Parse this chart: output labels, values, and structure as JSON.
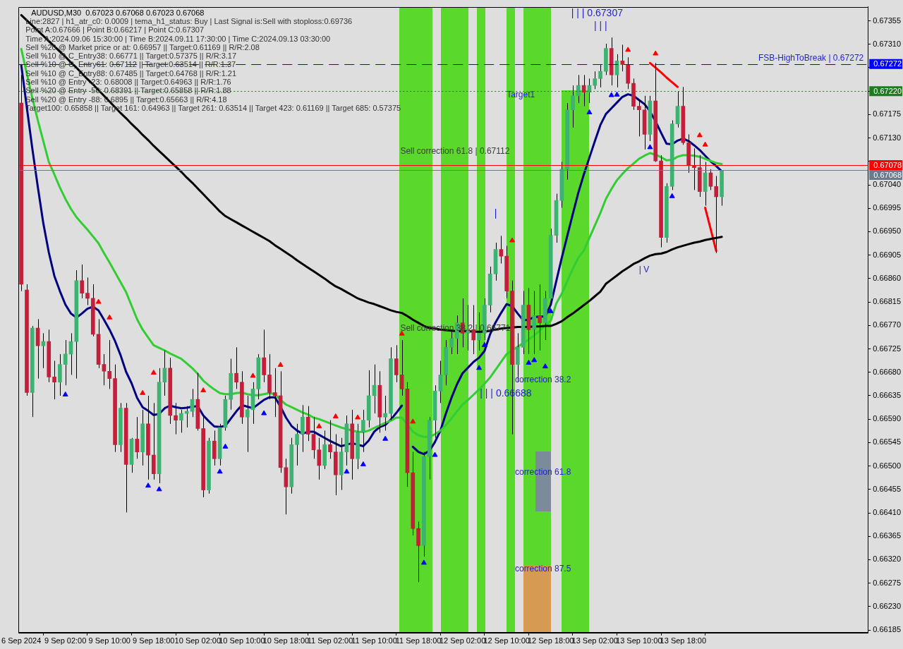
{
  "chart_data": {
    "type": "candlestick",
    "title": "AUDUSD,M30  0.67023 0.67068 0.67023 0.67068",
    "categories": [
      "6 Sep 2024",
      null,
      null,
      null,
      null,
      null,
      null,
      null,
      "9 Sep 02:00",
      null,
      null,
      null,
      null,
      null,
      null,
      null,
      "9 Sep 10:00",
      null,
      null,
      null,
      null,
      null,
      null,
      null,
      "9 Sep 18:00",
      null,
      null,
      null,
      null,
      null,
      null,
      null,
      "10 Sep 02:00",
      null,
      null,
      null,
      null,
      null,
      null,
      null,
      "10 Sep 10:00",
      null,
      null,
      null,
      null,
      null,
      null,
      null,
      "10 Sep 18:00",
      null,
      null,
      null,
      null,
      null,
      null,
      null,
      "11 Sep 02:00",
      null,
      null,
      null,
      null,
      null,
      null,
      null,
      "11 Sep 10:00",
      null,
      null,
      null,
      null,
      null,
      null,
      null,
      "11 Sep 18:00",
      null,
      null,
      null,
      null,
      null,
      null,
      null,
      "12 Sep 02:00",
      null,
      null,
      null,
      null,
      null,
      null,
      null,
      "12 Sep 10:00",
      null,
      null,
      null,
      null,
      null,
      null,
      null,
      "12 Sep 18:00",
      null,
      null,
      null,
      null,
      null,
      null,
      null,
      "13 Sep 02:00",
      null,
      null,
      null,
      null,
      null,
      null,
      null,
      "13 Sep 10:00",
      null,
      null,
      null,
      null,
      null,
      null,
      null,
      "13 Sep 18:00",
      null,
      null,
      null,
      null,
      null,
      null,
      null,
      null,
      null,
      null,
      null,
      null,
      null,
      null,
      null,
      null,
      null,
      null,
      null,
      null,
      null,
      null,
      null,
      null,
      null,
      null,
      null,
      null,
      null,
      null,
      null,
      null,
      null
    ],
    "ylim": [
      0.6618,
      0.67382
    ],
    "yticks": [
      0.67355,
      {
        "value": 0.6731,
        "label": "0.67310"
      },
      {
        "value": 0.67265,
        "label": null
      },
      {
        "value": 0.6722,
        "label": null
      },
      0.67175,
      {
        "value": 0.6713,
        "label": "0.67130"
      },
      {
        "value": 0.67085,
        "label": null
      },
      {
        "value": 0.6704,
        "label": "0.67040"
      },
      0.66995,
      {
        "value": 0.6695,
        "label": "0.66950"
      },
      0.66905,
      {
        "value": 0.6686,
        "label": "0.66860"
      },
      0.66815,
      {
        "value": 0.6677,
        "label": "0.66770"
      },
      0.66725,
      {
        "value": 0.6668,
        "label": "0.66680"
      },
      0.66635,
      {
        "value": 0.6659,
        "label": "0.66590"
      },
      0.66545,
      {
        "value": 0.665,
        "label": "0.66500"
      },
      0.66455,
      {
        "value": 0.6641,
        "label": "0.66410"
      },
      0.66365,
      {
        "value": 0.6632,
        "label": "0.66320"
      },
      0.66275,
      {
        "value": 0.6623,
        "label": "0.66230"
      },
      0.66185
    ],
    "ohlc": [
      [
        0.67197,
        0.67251,
        0.66836,
        0.66849
      ],
      [
        0.66838,
        0.66849,
        0.66635,
        0.66641
      ],
      [
        0.66641,
        0.66769,
        0.66594,
        0.66765
      ],
      [
        0.66765,
        0.66782,
        0.66668,
        0.66731
      ],
      [
        0.66731,
        0.66755,
        0.66688,
        0.66739
      ],
      [
        0.66739,
        0.66762,
        0.66661,
        0.66671
      ],
      [
        0.66671,
        0.66702,
        0.66628,
        0.66661
      ],
      [
        0.66661,
        0.66715,
        0.66635,
        0.66695
      ],
      [
        0.66695,
        0.66742,
        0.66655,
        0.66715
      ],
      [
        0.66715,
        0.66755,
        0.66675,
        0.66739
      ],
      [
        0.66739,
        0.66876,
        0.66668,
        0.66856
      ],
      [
        0.66856,
        0.66887,
        0.66822,
        0.66832
      ],
      [
        0.66832,
        0.66862,
        0.66809,
        0.66822
      ],
      [
        0.66822,
        0.66849,
        0.66749,
        0.66753
      ],
      [
        0.66753,
        0.66782,
        0.66688,
        0.66695
      ],
      [
        0.66695,
        0.66715,
        0.66655,
        0.66682
      ],
      [
        0.66682,
        0.66742,
        0.66648,
        0.66668
      ],
      [
        0.66668,
        0.66695,
        0.66527,
        0.66541
      ],
      [
        0.66541,
        0.66621,
        0.66527,
        0.66611
      ],
      [
        0.66611,
        0.66621,
        0.66411,
        0.66503
      ],
      [
        0.66503,
        0.66554,
        0.66487,
        0.66552
      ],
      [
        0.66552,
        0.66594,
        0.66514,
        0.66527
      ],
      [
        0.66527,
        0.66608,
        0.66501,
        0.66581
      ],
      [
        0.66581,
        0.66635,
        0.66474,
        0.66521
      ],
      [
        0.66521,
        0.66621,
        0.66474,
        0.66485
      ],
      [
        0.66485,
        0.66688,
        0.66467,
        0.66661
      ],
      [
        0.66661,
        0.66722,
        0.66635,
        0.66688
      ],
      [
        0.66688,
        0.66708,
        0.66581,
        0.66597
      ],
      [
        0.66597,
        0.66621,
        0.66561,
        0.66588
      ],
      [
        0.66588,
        0.66608,
        0.66564,
        0.66601
      ],
      [
        0.66601,
        0.66615,
        0.66574,
        0.66605
      ],
      [
        0.66605,
        0.66648,
        0.66594,
        0.66628
      ],
      [
        0.66628,
        0.66679,
        0.66568,
        0.66572
      ],
      [
        0.66572,
        0.66594,
        0.6644,
        0.66454
      ],
      [
        0.66454,
        0.66554,
        0.66447,
        0.66548
      ],
      [
        0.66548,
        0.66568,
        0.66501,
        0.66514
      ],
      [
        0.66514,
        0.66581,
        0.66501,
        0.66574
      ],
      [
        0.66574,
        0.66635,
        0.66568,
        0.66628
      ],
      [
        0.66628,
        0.66706,
        0.66608,
        0.66678
      ],
      [
        0.66678,
        0.66728,
        0.66648,
        0.66661
      ],
      [
        0.66661,
        0.66682,
        0.66581,
        0.66594
      ],
      [
        0.66594,
        0.66635,
        0.66527,
        0.66608
      ],
      [
        0.66608,
        0.66661,
        0.66581,
        0.66648
      ],
      [
        0.66648,
        0.66715,
        0.66628,
        0.66708
      ],
      [
        0.66708,
        0.66762,
        0.66661,
        0.66675
      ],
      [
        0.66675,
        0.66715,
        0.66628,
        0.66641
      ],
      [
        0.66641,
        0.66688,
        0.66594,
        0.66635
      ],
      [
        0.66635,
        0.66682,
        0.66487,
        0.66497
      ],
      [
        0.66497,
        0.66514,
        0.66407,
        0.6646
      ],
      [
        0.6646,
        0.66554,
        0.66447,
        0.66541
      ],
      [
        0.66541,
        0.66581,
        0.66501,
        0.66561
      ],
      [
        0.66561,
        0.66617,
        0.66527,
        0.66594
      ],
      [
        0.66594,
        0.66615,
        0.66548,
        0.66561
      ],
      [
        0.66561,
        0.66594,
        0.66514,
        0.66531
      ],
      [
        0.66531,
        0.66554,
        0.66474,
        0.66501
      ],
      [
        0.66501,
        0.66568,
        0.66494,
        0.66541
      ],
      [
        0.66541,
        0.66588,
        0.66514,
        0.66527
      ],
      [
        0.66527,
        0.66561,
        0.66444,
        0.66483
      ],
      [
        0.66483,
        0.66554,
        0.66454,
        0.66527
      ],
      [
        0.66527,
        0.66597,
        0.66501,
        0.66581
      ],
      [
        0.66581,
        0.66608,
        0.66474,
        0.66514
      ],
      [
        0.66514,
        0.66581,
        0.66494,
        0.66565
      ],
      [
        0.66565,
        0.66608,
        0.66527,
        0.66588
      ],
      [
        0.66588,
        0.66684,
        0.66574,
        0.66635
      ],
      [
        0.66635,
        0.66695,
        0.66601,
        0.66655
      ],
      [
        0.66655,
        0.66682,
        0.66564,
        0.66594
      ],
      [
        0.66594,
        0.66635,
        0.66568,
        0.66601
      ],
      [
        0.66601,
        0.66728,
        0.66588,
        0.66706
      ],
      [
        0.66706,
        0.66732,
        0.66661,
        0.66675
      ],
      [
        0.66675,
        0.66742,
        0.66635,
        0.66648
      ],
      [
        0.66648,
        0.66661,
        0.6646,
        0.66487
      ],
      [
        0.66487,
        0.66527,
        0.66367,
        0.6638
      ],
      [
        0.6638,
        0.66393,
        0.66277,
        0.66347
      ],
      [
        0.66347,
        0.66527,
        0.66326,
        0.66518
      ],
      [
        0.66518,
        0.66594,
        0.66474,
        0.66588
      ],
      [
        0.66588,
        0.66655,
        0.66554,
        0.66644
      ],
      [
        0.66644,
        0.66702,
        0.66621,
        0.66675
      ],
      [
        0.66675,
        0.66742,
        0.66655,
        0.66728
      ],
      [
        0.66728,
        0.66762,
        0.66715,
        0.66745
      ],
      [
        0.66745,
        0.66789,
        0.66715,
        0.66775
      ],
      [
        0.66775,
        0.66822,
        0.66728,
        0.66755
      ],
      [
        0.66755,
        0.66809,
        0.66722,
        0.66762
      ],
      [
        0.66762,
        0.66809,
        0.66715,
        0.66742
      ],
      [
        0.66742,
        0.66795,
        0.66722,
        0.66755
      ],
      [
        0.66755,
        0.66822,
        0.66742,
        0.66809
      ],
      [
        0.66809,
        0.66883,
        0.66795,
        0.66869
      ],
      [
        0.66869,
        0.66929,
        0.66856,
        0.66916
      ],
      [
        0.66916,
        0.66942,
        0.66889,
        0.66903
      ],
      [
        0.66903,
        0.66923,
        0.66822,
        0.66836
      ],
      [
        0.66836,
        0.66856,
        0.66561,
        0.66695
      ],
      [
        0.66695,
        0.66755,
        0.66661,
        0.66728
      ],
      [
        0.66728,
        0.66836,
        0.66715,
        0.66809
      ],
      [
        0.66809,
        0.66842,
        0.66715,
        0.66762
      ],
      [
        0.66762,
        0.66836,
        0.66715,
        0.66789
      ],
      [
        0.66789,
        0.66849,
        0.66722,
        0.66775
      ],
      [
        0.66775,
        0.66836,
        0.66742,
        0.66822
      ],
      [
        0.66822,
        0.66956,
        0.66809,
        0.66943
      ],
      [
        0.66943,
        0.67023,
        0.66929,
        0.6701
      ],
      [
        0.6701,
        0.67084,
        0.66996,
        0.6707
      ],
      [
        0.6707,
        0.67197,
        0.6705,
        0.67184
      ],
      [
        0.67184,
        0.67231,
        0.6715,
        0.67211
      ],
      [
        0.67211,
        0.67251,
        0.67197,
        0.67231
      ],
      [
        0.67231,
        0.67251,
        0.67191,
        0.67218
      ],
      [
        0.67218,
        0.67244,
        0.67197,
        0.67231
      ],
      [
        0.67231,
        0.67258,
        0.67224,
        0.67244
      ],
      [
        0.67244,
        0.67271,
        0.67227,
        0.67258
      ],
      [
        0.67258,
        0.67311,
        0.67251,
        0.67302
      ],
      [
        0.67302,
        0.67323,
        0.67231,
        0.67251
      ],
      [
        0.67251,
        0.67291,
        0.67227,
        0.67278
      ],
      [
        0.67278,
        0.67309,
        0.67258,
        0.67271
      ],
      [
        0.67271,
        0.67285,
        0.67224,
        0.67235
      ],
      [
        0.67235,
        0.67244,
        0.67184,
        0.67191
      ],
      [
        0.67191,
        0.67204,
        0.67133,
        0.67184
      ],
      [
        0.67184,
        0.67211,
        0.67108,
        0.67137
      ],
      [
        0.67137,
        0.67211,
        0.67124,
        0.67201
      ],
      [
        0.67201,
        0.67274,
        0.67084,
        0.67086
      ],
      [
        0.67086,
        0.67097,
        0.6692,
        0.66939
      ],
      [
        0.66939,
        0.67043,
        0.66929,
        0.67037
      ],
      [
        0.67037,
        0.67164,
        0.6703,
        0.67157
      ],
      [
        0.67157,
        0.6722,
        0.6715,
        0.67191
      ],
      [
        0.67191,
        0.67228,
        0.67117,
        0.67121
      ],
      [
        0.67121,
        0.67137,
        0.67063,
        0.67077
      ],
      [
        0.67077,
        0.6711,
        0.6703,
        0.67073
      ],
      [
        0.67073,
        0.67097,
        0.67017,
        0.67027
      ],
      [
        0.67027,
        0.67084,
        0.67,
        0.67063
      ],
      [
        0.67063,
        0.6707,
        0.6703,
        0.67037
      ],
      [
        0.67037,
        0.67057,
        0.66909,
        0.67017
      ],
      [
        0.67017,
        0.67068,
        0.67,
        0.67068
      ],
      null,
      null,
      null,
      null,
      null,
      null,
      null,
      null,
      null,
      null,
      null,
      null,
      null,
      null,
      null,
      null,
      null,
      null,
      null,
      null,
      null,
      null,
      null,
      null,
      null,
      null
    ],
    "colors": [
      "#c41e3a",
      "#c41e3a",
      "#3cb371",
      "#c41e3a",
      "#3cb371",
      "#c41e3a",
      "#c41e3a",
      "#3cb371",
      "#3cb371",
      "#3cb371",
      "#3cb371",
      "#c41e3a",
      "#c41e3a",
      "#c41e3a",
      "#c41e3a",
      "#c41e3a",
      "#c41e3a",
      "#c41e3a",
      "#3cb371",
      "#c41e3a",
      "#3cb371",
      "#c41e3a",
      "#3cb371",
      "#c41e3a",
      "#c41e3a",
      "#3cb371",
      "#3cb371",
      "#c41e3a",
      "#c41e3a",
      "#3cb371",
      "#3cb371",
      "#3cb371",
      "#c41e3a",
      "#c41e3a",
      "#3cb371",
      "#c41e3a",
      "#3cb371",
      "#3cb371",
      "#3cb371",
      "#c41e3a",
      "#c41e3a",
      "#3cb371",
      "#3cb371",
      "#3cb371",
      "#c41e3a",
      "#c41e3a",
      "#c41e3a",
      "#c41e3a",
      "#c41e3a",
      "#3cb371",
      "#3cb371",
      "#3cb371",
      "#c41e3a",
      "#c41e3a",
      "#c41e3a",
      "#3cb371",
      "#c41e3a",
      "#c41e3a",
      "#3cb371",
      "#3cb371",
      "#c41e3a",
      "#3cb371",
      "#3cb371",
      "#3cb371",
      "#3cb371",
      "#c41e3a",
      "#3cb371",
      "#3cb371",
      "#c41e3a",
      "#c41e3a",
      "#c41e3a",
      "#c41e3a",
      "#c41e3a",
      "#3cb371",
      "#3cb371",
      "#3cb371",
      "#3cb371",
      "#3cb371",
      "#3cb371",
      "#3cb371",
      "#c41e3a",
      "#3cb371",
      "#c41e3a",
      "#3cb371",
      "#3cb371",
      "#3cb371",
      "#3cb371",
      "#c41e3a",
      "#c41e3a",
      "#c41e3a",
      "#3cb371",
      "#3cb371",
      "#c41e3a",
      "#3cb371",
      "#c41e3a",
      "#3cb371",
      "#3cb371",
      "#3cb371",
      "#3cb371",
      "#3cb371",
      "#3cb371",
      "#3cb371",
      "#c41e3a",
      "#3cb371",
      "#3cb371",
      "#3cb371",
      "#3cb371",
      "#c41e3a",
      "#3cb371",
      "#c41e3a",
      "#c41e3a",
      "#c41e3a",
      "#c41e3a",
      "#c41e3a",
      "#3cb371",
      "#c41e3a",
      "#c41e3a",
      "#3cb371",
      "#3cb371",
      "#3cb371",
      "#c41e3a",
      "#c41e3a",
      "#c41e3a",
      "#c41e3a",
      "#3cb371",
      "#c41e3a",
      "#c41e3a",
      "#3cb371",
      null,
      null,
      null,
      null,
      null,
      null,
      null,
      null,
      null,
      null,
      null,
      null,
      null,
      null,
      null,
      null,
      null,
      null,
      null,
      null,
      null,
      null,
      null,
      null,
      null,
      null
    ],
    "series": [
      {
        "type": "line",
        "color": "#000000",
        "values": [
          0.67366,
          0.67356,
          0.67346,
          0.67336,
          0.67326,
          0.67316,
          0.67306,
          0.67296,
          0.67286,
          0.67275,
          0.67265,
          0.67254,
          0.67243,
          0.67233,
          0.67222,
          0.67211,
          0.672,
          0.67189,
          0.67178,
          0.67168,
          0.67157,
          0.67147,
          0.67136,
          0.67126,
          0.67115,
          0.67105,
          0.67095,
          0.67085,
          0.67075,
          0.67065,
          0.67054,
          0.67044,
          0.67033,
          0.67022,
          0.67011,
          0.67,
          0.66989,
          0.6698,
          0.66974,
          0.66968,
          0.66962,
          0.66956,
          0.6695,
          0.66944,
          0.66938,
          0.66932,
          0.66924,
          0.66917,
          0.6691,
          0.66903,
          0.66895,
          0.66888,
          0.66881,
          0.66874,
          0.66867,
          0.6686,
          0.66852,
          0.66845,
          0.6684,
          0.66834,
          0.66828,
          0.66822,
          0.66818,
          0.66814,
          0.66811,
          0.66807,
          0.66803,
          0.66799,
          0.66796,
          0.66794,
          0.66788,
          0.66781,
          0.66775,
          0.66769,
          0.66765,
          0.66764,
          0.66762,
          0.66761,
          0.6676,
          0.66759,
          0.66759,
          0.66759,
          0.66758,
          0.66758,
          0.66758,
          0.6676,
          0.66762,
          0.66764,
          0.66765,
          0.66766,
          0.66767,
          0.66767,
          0.66767,
          0.66768,
          0.66768,
          0.66769,
          0.66769,
          0.66773,
          0.66778,
          0.66786,
          0.66793,
          0.66801,
          0.66809,
          0.66817,
          0.66826,
          0.66835,
          0.6685,
          0.66858,
          0.66866,
          0.66874,
          0.66881,
          0.66888,
          0.66893,
          0.66899,
          0.66904,
          0.66907,
          0.66908,
          0.66911,
          0.66916,
          0.6692,
          0.66923,
          0.66926,
          0.66929,
          0.66931,
          0.66934,
          0.66936,
          0.66938,
          0.6694,
          null,
          null,
          null,
          null,
          null,
          null,
          null,
          null,
          null,
          null,
          null,
          null,
          null,
          null,
          null,
          null,
          null,
          null,
          null,
          null,
          null,
          null,
          null,
          null,
          null,
          null
        ]
      },
      {
        "type": "line",
        "color": "#32cd32",
        "values": [
          0.67301,
          0.67254,
          0.67207,
          0.67164,
          0.67124,
          0.67084,
          0.6706,
          0.67035,
          0.67013,
          0.66994,
          0.66978,
          0.66966,
          0.66954,
          0.66941,
          0.66928,
          0.66909,
          0.66891,
          0.66872,
          0.66853,
          0.66834,
          0.66808,
          0.66782,
          0.66762,
          0.66747,
          0.66732,
          0.66727,
          0.66722,
          0.66716,
          0.66711,
          0.66706,
          0.66697,
          0.66688,
          0.66677,
          0.66664,
          0.66655,
          0.66647,
          0.6664,
          0.66638,
          0.66638,
          0.6664,
          0.66641,
          0.66638,
          0.66636,
          0.66636,
          0.66638,
          0.6664,
          0.66638,
          0.66627,
          0.66618,
          0.66613,
          0.66608,
          0.66603,
          0.66599,
          0.66593,
          0.6659,
          0.66586,
          0.66582,
          0.66578,
          0.66574,
          0.66571,
          0.66568,
          0.66566,
          0.66565,
          0.66568,
          0.66573,
          0.66578,
          0.66583,
          0.66587,
          0.66593,
          0.66593,
          0.6658,
          0.66566,
          0.66559,
          0.66556,
          0.66556,
          0.66561,
          0.66568,
          0.66579,
          0.66591,
          0.66605,
          0.66618,
          0.66627,
          0.66637,
          0.66647,
          0.66658,
          0.6667,
          0.66685,
          0.667,
          0.66715,
          0.66722,
          0.66729,
          0.66736,
          0.66743,
          0.66751,
          0.6676,
          0.6677,
          0.66779,
          0.66812,
          0.66831,
          0.66855,
          0.66879,
          0.669,
          0.66914,
          0.66938,
          0.66962,
          0.66986,
          0.67013,
          0.67032,
          0.67049,
          0.67061,
          0.67072,
          0.67081,
          0.6709,
          0.67096,
          0.67101,
          0.67098,
          0.67093,
          0.67087,
          0.67088,
          0.67094,
          0.67097,
          0.67097,
          0.67096,
          0.67094,
          0.6709,
          0.67086,
          0.67082,
          0.6708,
          null,
          null,
          null,
          null,
          null,
          null,
          null,
          null,
          null,
          null,
          null,
          null,
          null,
          null,
          null,
          null,
          null,
          null,
          null,
          null,
          null,
          null,
          null,
          null,
          null,
          null
        ]
      },
      {
        "type": "line",
        "color": "#000080",
        "values": [
          0.6727,
          0.67189,
          0.6711,
          0.67036,
          0.66966,
          0.6691,
          0.66865,
          0.66836,
          0.6681,
          0.66793,
          0.66785,
          0.66793,
          0.66802,
          0.66806,
          0.66799,
          0.66781,
          0.66762,
          0.6674,
          0.66713,
          0.66681,
          0.66659,
          0.66631,
          0.66613,
          0.66606,
          0.66598,
          0.666,
          0.66611,
          0.66616,
          0.66613,
          0.66611,
          0.66612,
          0.66614,
          0.66615,
          0.66597,
          0.66586,
          0.66576,
          0.66575,
          0.66577,
          0.66591,
          0.66605,
          0.66617,
          0.66614,
          0.66611,
          0.66619,
          0.66627,
          0.66632,
          0.66632,
          0.66614,
          0.66593,
          0.66577,
          0.66568,
          0.66562,
          0.66566,
          0.66566,
          0.6656,
          0.66554,
          0.66548,
          0.66543,
          0.66538,
          0.66541,
          0.66544,
          0.66541,
          0.66538,
          0.66549,
          0.66566,
          0.66575,
          0.66579,
          0.66589,
          0.66602,
          0.66616,
          null,
          0.66537,
          0.66527,
          0.66523,
          0.66529,
          0.66546,
          0.66568,
          0.66601,
          0.66631,
          0.66657,
          0.66678,
          0.66689,
          0.667,
          0.66708,
          0.66721,
          0.66753,
          0.66776,
          0.66794,
          0.66811,
          0.66807,
          0.66793,
          0.6678,
          0.66781,
          0.66786,
          0.66787,
          0.66787,
          0.6681,
          0.66855,
          0.669,
          0.66942,
          0.66984,
          0.67025,
          0.6706,
          0.67092,
          0.67124,
          0.67155,
          0.67176,
          0.67187,
          0.67198,
          0.67209,
          0.67214,
          0.67211,
          0.67203,
          0.67195,
          0.67181,
          0.67162,
          0.6714,
          0.67119,
          0.67118,
          0.67125,
          0.67129,
          0.67124,
          0.67116,
          0.67107,
          0.67096,
          0.67085,
          0.67076,
          0.67066,
          null,
          null,
          null,
          null,
          null,
          null,
          null,
          null,
          null,
          null,
          null,
          null,
          null,
          null,
          null,
          null,
          null,
          null,
          null,
          null,
          null,
          null,
          null,
          null,
          null,
          null
        ]
      },
      {
        "type": "line",
        "color": "#ff0000",
        "values": [
          null,
          null,
          null,
          null,
          null,
          null,
          null,
          null,
          null,
          null,
          null,
          null,
          null,
          null,
          null,
          null,
          null,
          null,
          null,
          null,
          null,
          null,
          null,
          null,
          null,
          null,
          null,
          null,
          null,
          null,
          null,
          null,
          null,
          null,
          null,
          null,
          null,
          null,
          null,
          null,
          null,
          null,
          null,
          null,
          null,
          null,
          null,
          null,
          null,
          null,
          null,
          null,
          null,
          null,
          null,
          null,
          null,
          null,
          null,
          null,
          null,
          null,
          null,
          null,
          null,
          null,
          null,
          null,
          null,
          null,
          null,
          null,
          null,
          null,
          null,
          null,
          null,
          null,
          null,
          null,
          null,
          null,
          null,
          null,
          null,
          null,
          null,
          null,
          null,
          null,
          null,
          null,
          null,
          null,
          null,
          null,
          null,
          null,
          null,
          null,
          null,
          null,
          null,
          null,
          null,
          null,
          null,
          null,
          null,
          null,
          null,
          null,
          null,
          null,
          0.67274,
          0.67265,
          0.67256,
          0.67246,
          0.67237,
          0.67228,
          null,
          null,
          null,
          null,
          0.66996,
          0.66955,
          0.66913,
          null,
          null,
          null,
          null,
          null,
          null,
          null,
          null,
          null,
          null,
          null,
          null,
          null,
          null,
          null,
          null,
          null,
          null,
          null,
          null,
          null,
          null,
          null,
          null,
          null,
          null,
          null
        ]
      },
      {
        "type": "scatter",
        "color": "#0000ff",
        "marker": "triangle",
        "values": [
          null,
          null,
          null,
          null,
          null,
          null,
          null,
          null,
          0.66637,
          null,
          null,
          null,
          null,
          null,
          null,
          null,
          null,
          null,
          null,
          null,
          null,
          null,
          null,
          0.66462,
          null,
          0.66455,
          null,
          null,
          null,
          null,
          null,
          null,
          null,
          null,
          null,
          null,
          0.66489,
          0.66537,
          null,
          null,
          null,
          null,
          null,
          null,
          0.66601,
          null,
          null,
          null,
          null,
          null,
          null,
          null,
          null,
          null,
          null,
          null,
          null,
          null,
          null,
          0.66489,
          null,
          null,
          0.66503,
          null,
          null,
          null,
          0.66552,
          null,
          null,
          null,
          null,
          null,
          null,
          0.66314,
          null,
          0.66521,
          null,
          null,
          null,
          null,
          null,
          null,
          null,
          0.66688,
          0.66732,
          null,
          null,
          null,
          null,
          null,
          null,
          null,
          0.66698,
          0.66703,
          null,
          0.66691,
          0.66797,
          null,
          null,
          null,
          null,
          null,
          null,
          0.67179,
          null,
          null,
          null,
          0.67212,
          0.67213,
          null,
          null,
          null,
          null,
          null,
          0.67112,
          null,
          null,
          null,
          0.67018,
          null,
          null,
          null,
          null,
          null,
          null,
          null,
          null,
          null,
          null,
          null,
          null,
          null,
          null,
          null,
          null,
          null,
          null,
          null,
          null,
          null,
          null,
          null,
          null,
          null,
          null,
          null,
          null,
          null,
          null,
          null,
          null,
          null,
          null,
          null
        ]
      },
      {
        "type": "scatter",
        "color": "#ff0000",
        "marker": "triangle",
        "values": [
          null,
          null,
          null,
          null,
          null,
          null,
          null,
          null,
          null,
          null,
          null,
          null,
          null,
          null,
          0.66815,
          null,
          0.66785,
          null,
          null,
          null,
          null,
          null,
          0.6664,
          null,
          0.66679,
          null,
          null,
          null,
          null,
          null,
          null,
          null,
          null,
          0.66645,
          null,
          null,
          null,
          null,
          null,
          null,
          null,
          null,
          0.66673,
          null,
          null,
          null,
          null,
          0.66694,
          null,
          null,
          null,
          null,
          null,
          null,
          0.66576,
          null,
          null,
          0.66595,
          null,
          null,
          null,
          0.66593,
          null,
          null,
          null,
          null,
          null,
          null,
          null,
          0.66754,
          null,
          0.66585,
          null,
          null,
          null,
          null,
          null,
          null,
          null,
          null,
          null,
          null,
          null,
          null,
          null,
          null,
          null,
          null,
          null,
          0.66933,
          null,
          null,
          null,
          null,
          null,
          null,
          null,
          null,
          null,
          null,
          null,
          null,
          null,
          null,
          null,
          null,
          null,
          null,
          null,
          null,
          0.67299,
          null,
          null,
          null,
          null,
          0.67292,
          null,
          null,
          null,
          null,
          null,
          null,
          null,
          0.67135,
          0.67117,
          null,
          null,
          null,
          null,
          null,
          null,
          null,
          null,
          null,
          null,
          null,
          null,
          null,
          null,
          null,
          null,
          null,
          null,
          null,
          null,
          null,
          null,
          null,
          null,
          null,
          null,
          null,
          null,
          null
        ]
      }
    ],
    "ref_lines": [
      {
        "axis": "y",
        "value": 0.67272,
        "label": "0.67272",
        "color": "#0000ff",
        "line_style": "dashed"
      },
      {
        "axis": "y",
        "value": 0.6722,
        "label": "0.67220",
        "color": "#1e7b1e",
        "line_style": "dotted"
      },
      {
        "axis": "y",
        "value": 0.67078,
        "label": "0.67078",
        "color": "#ff0000",
        "line_style": "solid"
      },
      {
        "axis": "y",
        "value": 0.67068,
        "label": "0.67068",
        "color": "#6b7b8b",
        "line_style": "solid"
      }
    ],
    "annotations": [
      "Line:2827 | h1_atr_c0: 0.0009 | tema_h1_status: Buy | Last Signal is:Sell with stoploss:0.69736",
      "Point A:0.67666 | Point B:0.66217 | Point C:0.67307",
      "Time A:2024.09.06 15:30:00 | Time B:2024.09.11 17:30:00 | Time C:2024.09.13 03:30:00",
      "Sell %20 @ Market price or at: 0.66957 || Target:0.61169 || R/R:2.08",
      "Sell %10 @ C_Entry38: 0.66771 || Target:0.57375 || R/R:3.17",
      "Sell %10 @ C_Entry61: 0.67112 || Target:0.63514 || R/R:1.37",
      "Sell %10 @ C_Entry88: 0.67485 || Target:0.64768 || R/R:1.21",
      "Sell %10 @ Entry -23: 0.68008 || Target:0.64963 || R/R:1.76",
      "Sell %20 @ Entry -50: 0.68391 || Target:0.65858 || R/R:1.88",
      "Sell %20 @ Entry -88: 0.6895 || Target:0.65663 || R/R:4.18",
      "Target100: 0.65858 || Target 161: 0.64963 || Target 261: 0.63514 || Target 423: 0.61169 || Target 685: 0.57375",
      "Sell correction 61.8 | 0.67112",
      "Sell correction 38.2 | 0.66771",
      "| | | 0.67307",
      "| | |",
      "|",
      "| | | 0.66688",
      "correction 38.2",
      "correction 61.8",
      "correction 87.5",
      {
        "text": "FSB-HighToBreak | 0.67272",
        "y": 0.67272
      },
      {
        "text": "Target1",
        "x": "12 Sep 10:00",
        "y": 0.6722
      },
      {
        "text": "| V",
        "x": "13 Sep 10:00",
        "y": 0.66885
      }
    ]
  }
}
